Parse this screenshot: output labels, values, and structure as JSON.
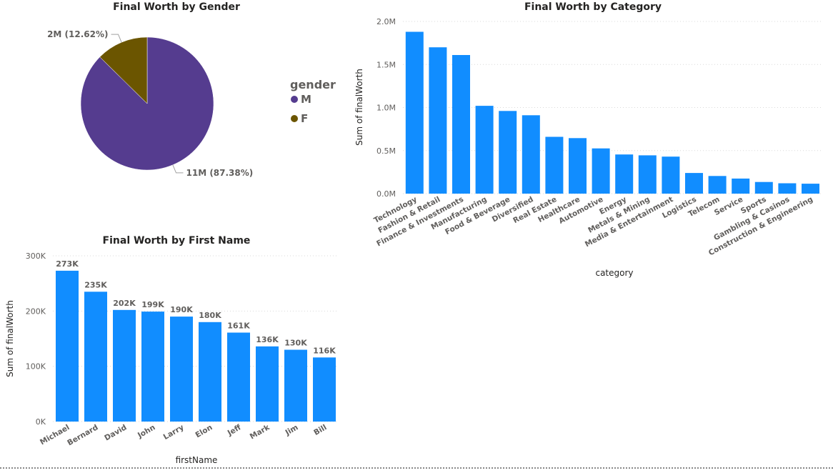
{
  "colors": {
    "bar": "#118DFF",
    "grid": "#D9D9D9",
    "male": "#553C8F",
    "female": "#6B5500",
    "leader": "#A0A0A0"
  },
  "chart_data": [
    {
      "type": "pie",
      "title": "Final Worth by Gender",
      "legend_title": "gender",
      "legend_position": "right",
      "slices": [
        {
          "name": "M",
          "value": 11,
          "percent": 87.38,
          "label": "11M (87.38%)",
          "color": "#553C8F"
        },
        {
          "name": "F",
          "value": 2,
          "percent": 12.62,
          "label": "2M (12.62%)",
          "color": "#6B5500"
        }
      ]
    },
    {
      "type": "bar",
      "title": "Final Worth by Category",
      "xlabel": "category",
      "ylabel": "Sum of finalWorth",
      "ylim": [
        0,
        2000000
      ],
      "yticks": [
        {
          "value": 0,
          "label": "0.0M"
        },
        {
          "value": 500000,
          "label": "0.5M"
        },
        {
          "value": 1000000,
          "label": "1.0M"
        },
        {
          "value": 1500000,
          "label": "1.5M"
        },
        {
          "value": 2000000,
          "label": "2.0M"
        }
      ],
      "grid": true,
      "categories": [
        "Technology",
        "Fashion & Retail",
        "Finance & Investments",
        "Manufacturing",
        "Food & Beverage",
        "Diversified",
        "Real Estate",
        "Healthcare",
        "Automotive",
        "Energy",
        "Metals & Mining",
        "Media & Entertainment",
        "Logistics",
        "Telecom",
        "Service",
        "Sports",
        "Gambling & Casinos",
        "Construction & Engineering"
      ],
      "values": [
        1880000,
        1700000,
        1610000,
        1020000,
        960000,
        910000,
        660000,
        645000,
        525000,
        455000,
        445000,
        430000,
        240000,
        205000,
        175000,
        135000,
        120000,
        115000
      ]
    },
    {
      "type": "bar",
      "title": "Final Worth by First Name",
      "xlabel": "firstName",
      "ylabel": "Sum of finalWorth",
      "ylim": [
        0,
        300000
      ],
      "yticks": [
        {
          "value": 0,
          "label": "0K"
        },
        {
          "value": 100000,
          "label": "100K"
        },
        {
          "value": 200000,
          "label": "200K"
        },
        {
          "value": 300000,
          "label": "300K"
        }
      ],
      "grid": true,
      "categories": [
        "Michael",
        "Bernard",
        "David",
        "John",
        "Larry",
        "Elon",
        "Jeff",
        "Mark",
        "Jim",
        "Bill"
      ],
      "values": [
        273000,
        235000,
        202000,
        199000,
        190000,
        180000,
        161000,
        136000,
        130000,
        116000
      ],
      "data_labels": [
        "273K",
        "235K",
        "202K",
        "199K",
        "190K",
        "180K",
        "161K",
        "136K",
        "130K",
        "116K"
      ]
    }
  ]
}
